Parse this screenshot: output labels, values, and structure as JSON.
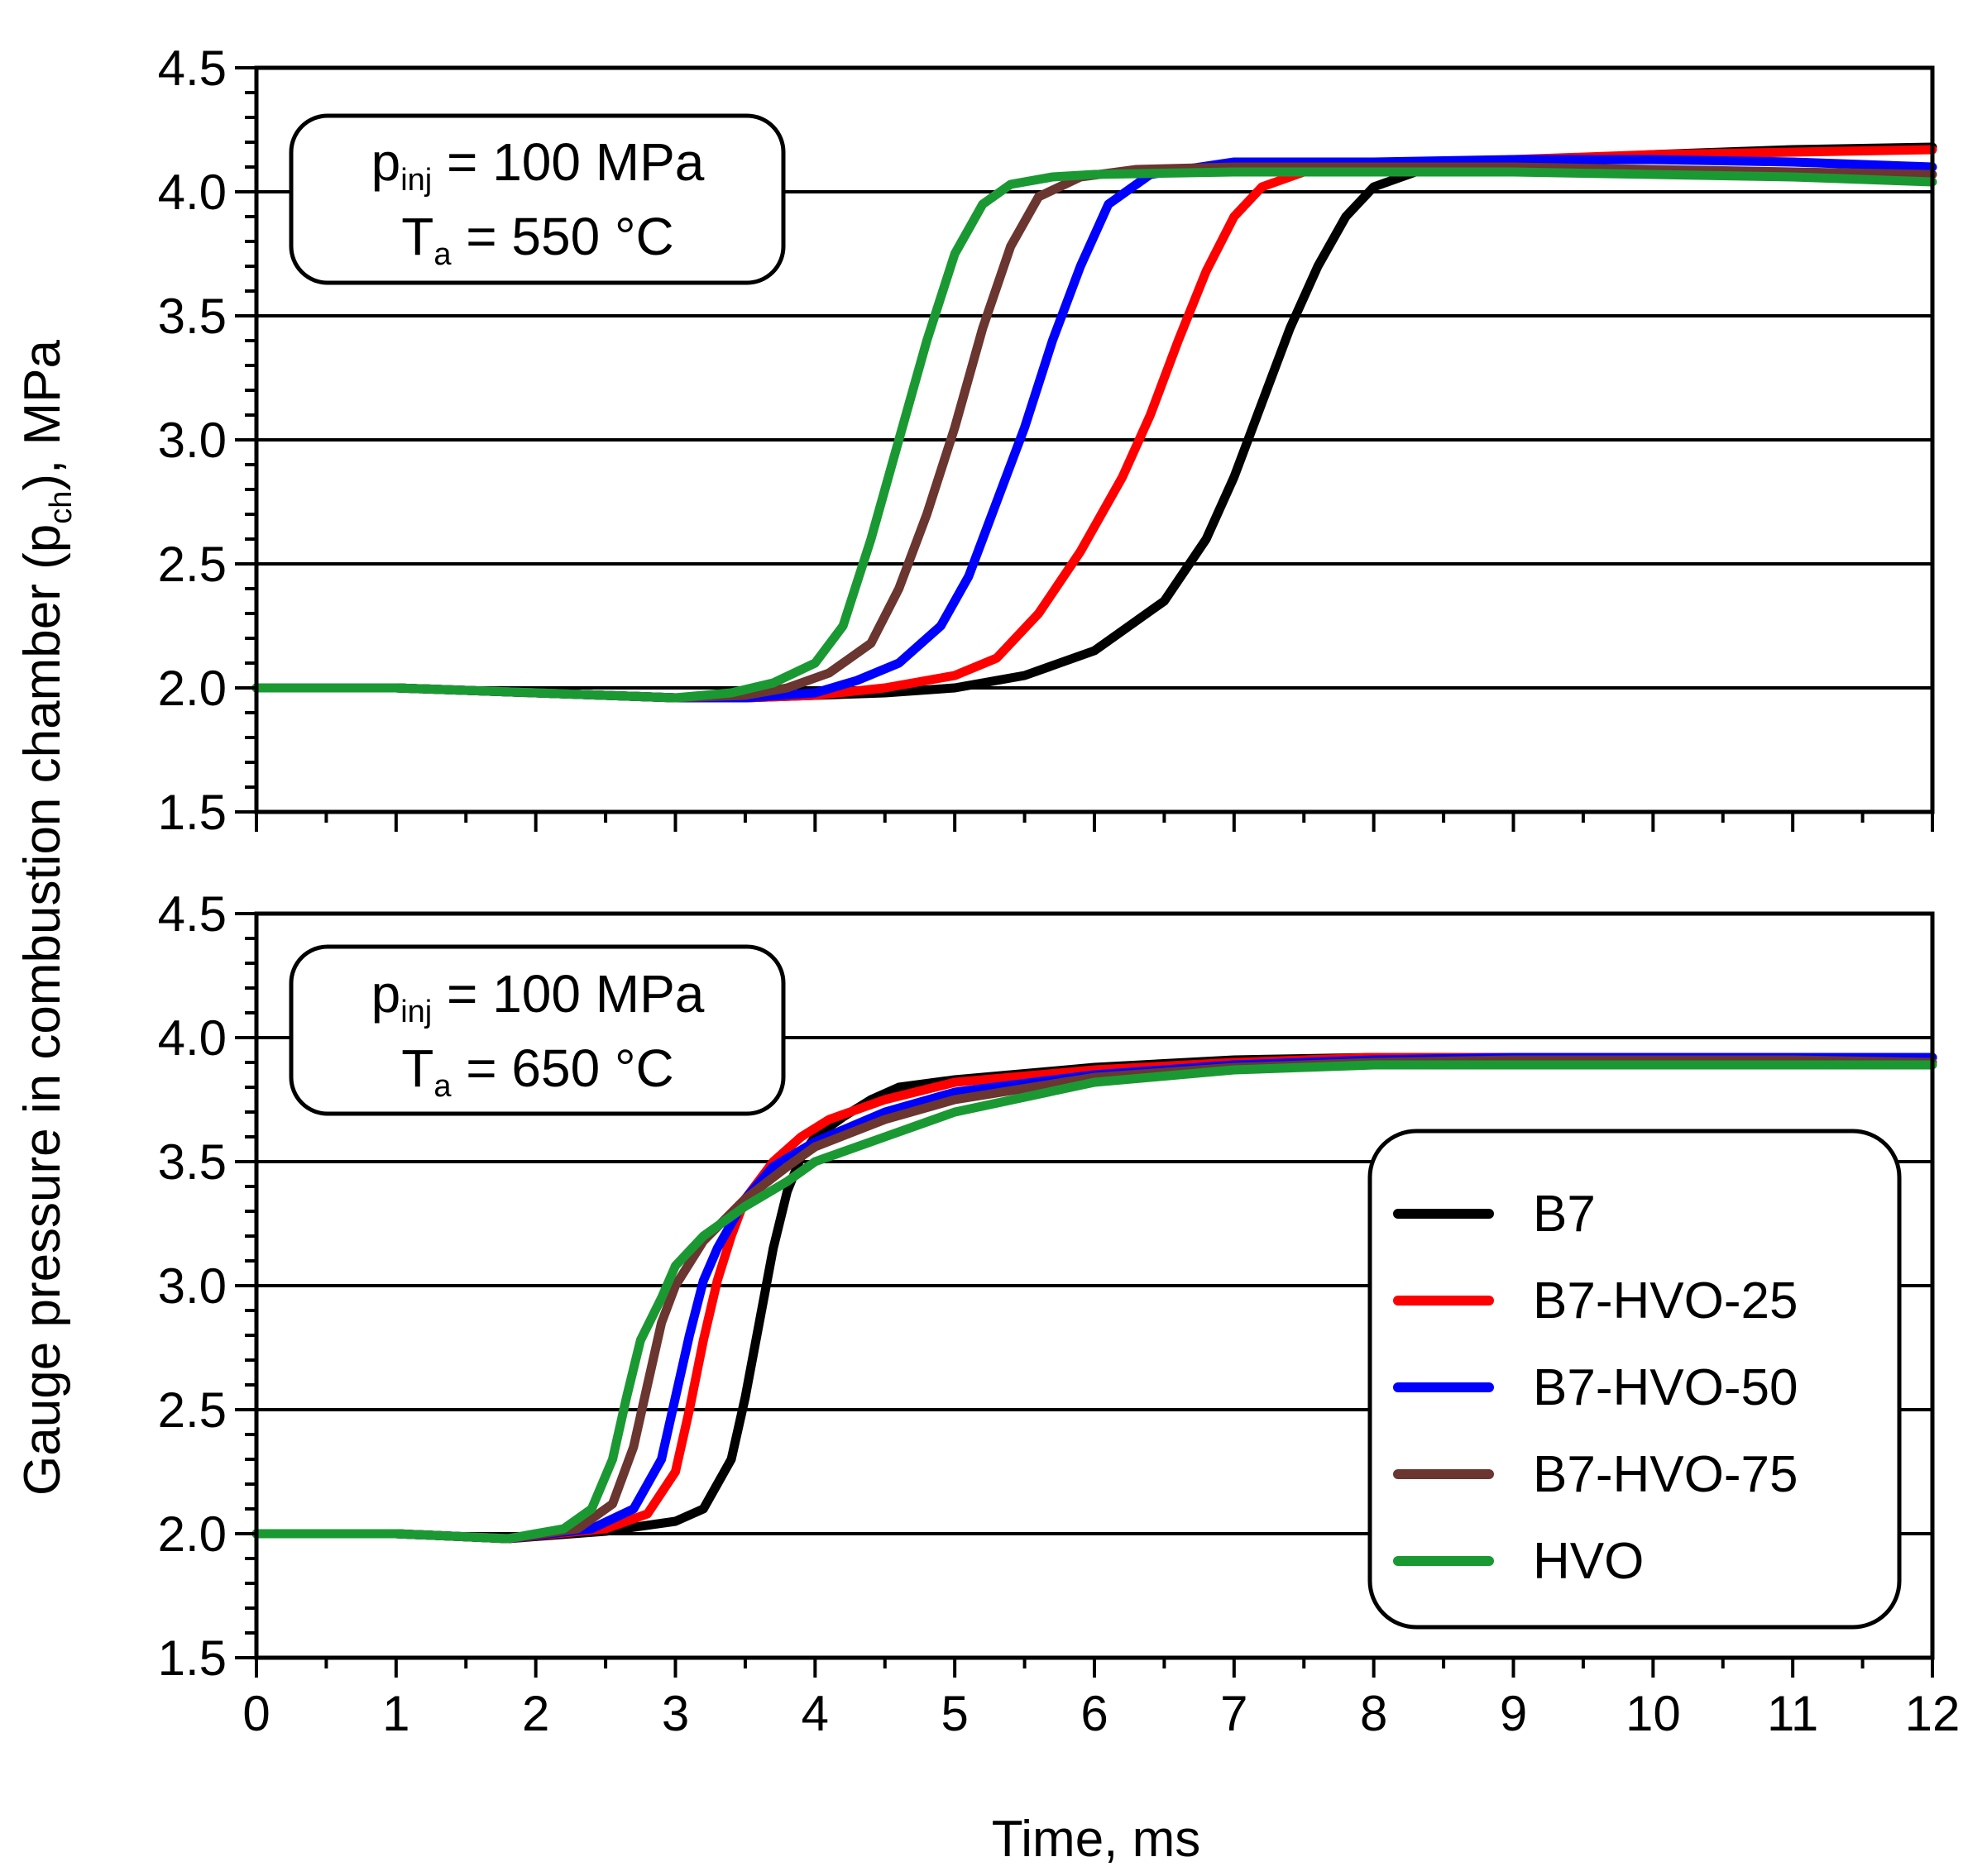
{
  "chart_data": [
    {
      "type": "line",
      "panel": "top",
      "annotation": {
        "line1_main": "p",
        "line1_sub": "inj",
        "line1_rest": " = 100 MPa",
        "line2_main": "T",
        "line2_sub": "a",
        "line2_rest": " = 550 °C"
      },
      "xlim": [
        0,
        12
      ],
      "ylim": [
        1.5,
        4.5
      ],
      "yticks": [
        "1.5",
        "2.0",
        "2.5",
        "3.0",
        "3.5",
        "4.0",
        "4.5"
      ],
      "grid": "horizontal",
      "series": [
        {
          "name": "B7",
          "color": "#000000",
          "x": [
            0,
            1,
            2,
            3,
            3.5,
            4,
            4.5,
            5,
            5.5,
            6,
            6.5,
            6.8,
            7.0,
            7.2,
            7.4,
            7.6,
            7.8,
            8.0,
            8.3,
            8.6,
            9,
            10,
            11,
            12
          ],
          "y": [
            2.0,
            2.0,
            1.98,
            1.96,
            1.96,
            1.97,
            1.98,
            2.0,
            2.05,
            2.15,
            2.35,
            2.6,
            2.85,
            3.15,
            3.45,
            3.7,
            3.9,
            4.02,
            4.08,
            4.1,
            4.12,
            4.15,
            4.17,
            4.18
          ]
        },
        {
          "name": "B7-HVO-25",
          "color": "#ff0000",
          "x": [
            0,
            1,
            2,
            3,
            3.5,
            4,
            4.5,
            5,
            5.3,
            5.6,
            5.9,
            6.2,
            6.4,
            6.6,
            6.8,
            7.0,
            7.2,
            7.5,
            8,
            9,
            10,
            11,
            12
          ],
          "y": [
            2.0,
            2.0,
            1.98,
            1.96,
            1.96,
            1.97,
            2.0,
            2.05,
            2.12,
            2.3,
            2.55,
            2.85,
            3.1,
            3.4,
            3.68,
            3.9,
            4.02,
            4.08,
            4.1,
            4.13,
            4.15,
            4.16,
            4.17
          ]
        },
        {
          "name": "B7-HVO-50",
          "color": "#0000ff",
          "x": [
            0,
            1,
            2,
            3,
            3.5,
            4,
            4.3,
            4.6,
            4.9,
            5.1,
            5.3,
            5.5,
            5.7,
            5.9,
            6.1,
            6.4,
            7,
            8,
            9,
            10,
            11,
            12
          ],
          "y": [
            2.0,
            2.0,
            1.98,
            1.96,
            1.96,
            1.98,
            2.03,
            2.1,
            2.25,
            2.45,
            2.75,
            3.05,
            3.4,
            3.7,
            3.95,
            4.07,
            4.12,
            4.12,
            4.13,
            4.13,
            4.12,
            4.1
          ]
        },
        {
          "name": "B7-HVO-75",
          "color": "#6b3530",
          "x": [
            0,
            1,
            2,
            3,
            3.5,
            3.8,
            4.1,
            4.4,
            4.6,
            4.8,
            5.0,
            5.2,
            5.4,
            5.6,
            5.9,
            6.3,
            7,
            8,
            9,
            10,
            11,
            12
          ],
          "y": [
            2.0,
            2.0,
            1.98,
            1.96,
            1.97,
            2.0,
            2.06,
            2.18,
            2.4,
            2.7,
            3.05,
            3.45,
            3.78,
            3.98,
            4.06,
            4.09,
            4.1,
            4.1,
            4.1,
            4.09,
            4.08,
            4.07
          ]
        },
        {
          "name": "HVO",
          "color": "#1a9933",
          "x": [
            0,
            1,
            2,
            3,
            3.4,
            3.7,
            4.0,
            4.2,
            4.4,
            4.6,
            4.8,
            5.0,
            5.2,
            5.4,
            5.7,
            6.0,
            7,
            8,
            9,
            10,
            11,
            12
          ],
          "y": [
            2.0,
            2.0,
            1.98,
            1.96,
            1.98,
            2.02,
            2.1,
            2.25,
            2.6,
            3.0,
            3.4,
            3.75,
            3.95,
            4.03,
            4.06,
            4.07,
            4.08,
            4.08,
            4.08,
            4.07,
            4.06,
            4.04
          ]
        }
      ]
    },
    {
      "type": "line",
      "panel": "bottom",
      "annotation": {
        "line1_main": "p",
        "line1_sub": "inj",
        "line1_rest": " = 100 MPa",
        "line2_main": "T",
        "line2_sub": "a",
        "line2_rest": " = 650 °C"
      },
      "xlim": [
        0,
        12
      ],
      "ylim": [
        1.5,
        4.5
      ],
      "xticks": [
        "0",
        "1",
        "2",
        "3",
        "4",
        "5",
        "6",
        "7",
        "8",
        "9",
        "10",
        "11",
        "12"
      ],
      "yticks": [
        "1.5",
        "2.0",
        "2.5",
        "3.0",
        "3.5",
        "4.0",
        "4.5"
      ],
      "xlabel": "Time, ms",
      "grid": "horizontal",
      "legend": {
        "position": "bottom-right",
        "entries": [
          "B7",
          "B7-HVO-25",
          "B7-HVO-50",
          "B7-HVO-75",
          "HVO"
        ]
      },
      "series": [
        {
          "name": "B7",
          "color": "#000000",
          "x": [
            0,
            1,
            1.8,
            2.5,
            3.0,
            3.2,
            3.4,
            3.5,
            3.6,
            3.7,
            3.8,
            3.9,
            4.0,
            4.2,
            4.4,
            4.6,
            5.0,
            6,
            7,
            8,
            9,
            10,
            11,
            12
          ],
          "y": [
            2.0,
            2.0,
            1.98,
            2.01,
            2.05,
            2.1,
            2.3,
            2.55,
            2.85,
            3.15,
            3.38,
            3.52,
            3.6,
            3.68,
            3.75,
            3.8,
            3.83,
            3.88,
            3.91,
            3.92,
            3.92,
            3.92,
            3.92,
            3.92
          ]
        },
        {
          "name": "B7-HVO-25",
          "color": "#ff0000",
          "x": [
            0,
            1,
            1.8,
            2.5,
            2.8,
            3.0,
            3.1,
            3.2,
            3.3,
            3.4,
            3.5,
            3.7,
            3.9,
            4.1,
            4.5,
            5.0,
            6,
            7,
            8,
            9,
            10,
            11,
            12
          ],
          "y": [
            2.0,
            2.0,
            1.98,
            2.02,
            2.08,
            2.25,
            2.5,
            2.78,
            3.02,
            3.2,
            3.35,
            3.5,
            3.6,
            3.67,
            3.75,
            3.82,
            3.87,
            3.9,
            3.92,
            3.92,
            3.92,
            3.92,
            3.92
          ]
        },
        {
          "name": "B7-HVO-50",
          "color": "#0000ff",
          "x": [
            0,
            1,
            1.8,
            2.4,
            2.7,
            2.9,
            3.0,
            3.1,
            3.2,
            3.3,
            3.5,
            3.7,
            4.0,
            4.5,
            5.0,
            6,
            7,
            8,
            9,
            10,
            11,
            12
          ],
          "y": [
            2.0,
            2.0,
            1.98,
            2.02,
            2.1,
            2.3,
            2.55,
            2.8,
            3.02,
            3.15,
            3.35,
            3.48,
            3.58,
            3.7,
            3.78,
            3.85,
            3.89,
            3.91,
            3.92,
            3.92,
            3.92,
            3.92
          ]
        },
        {
          "name": "B7-HVO-75",
          "color": "#6b3530",
          "x": [
            0,
            1,
            1.8,
            2.3,
            2.55,
            2.7,
            2.8,
            2.9,
            3.0,
            3.2,
            3.5,
            3.8,
            4.0,
            4.5,
            5.0,
            6,
            7,
            8,
            9,
            10,
            11,
            12
          ],
          "y": [
            2.0,
            2.0,
            1.98,
            2.02,
            2.12,
            2.35,
            2.6,
            2.85,
            3.0,
            3.18,
            3.35,
            3.48,
            3.56,
            3.67,
            3.75,
            3.84,
            3.88,
            3.9,
            3.91,
            3.91,
            3.91,
            3.9
          ]
        },
        {
          "name": "HVO",
          "color": "#1a9933",
          "x": [
            0,
            1,
            1.8,
            2.2,
            2.4,
            2.55,
            2.65,
            2.75,
            2.9,
            3.0,
            3.2,
            3.5,
            3.8,
            4.0,
            4.5,
            5.0,
            6,
            7,
            8,
            9,
            10,
            11,
            12
          ],
          "y": [
            2.0,
            2.0,
            1.98,
            2.02,
            2.1,
            2.3,
            2.55,
            2.78,
            2.95,
            3.08,
            3.2,
            3.32,
            3.42,
            3.5,
            3.6,
            3.7,
            3.82,
            3.87,
            3.89,
            3.89,
            3.89,
            3.89,
            3.89
          ]
        }
      ]
    }
  ],
  "ylabel": {
    "pre": "Gauge pressure in combustion chamber (p",
    "sub": "ch",
    "post": "), MPa"
  }
}
